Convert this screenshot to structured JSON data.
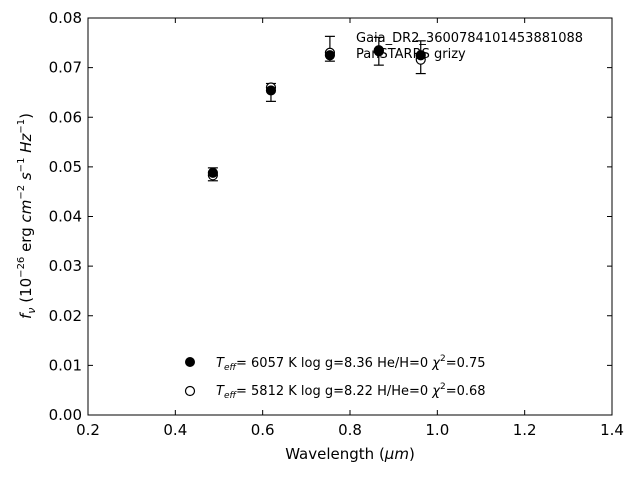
{
  "chart_data": {
    "type": "scatter",
    "xlabel_prefix": "Wavelength (",
    "xlabel_unit": "μm",
    "xlabel_suffix": ")",
    "ylabel_f": "f",
    "ylabel_nu": "ν",
    "ylabel_open": " (10",
    "ylabel_exp": "−26",
    "ylabel_erg": " erg ",
    "ylabel_cm": "cm",
    "ylabel_cm_exp": "−2",
    "ylabel_s": " s",
    "ylabel_s_exp": "−1",
    "ylabel_hz": " Hz",
    "ylabel_hz_exp": "−1",
    "ylabel_close": ")",
    "xlim": [
      0.2,
      1.4
    ],
    "ylim": [
      0.0,
      0.08
    ],
    "xticks": [
      0.2,
      0.4,
      0.6,
      0.8,
      1.0,
      1.2,
      1.4
    ],
    "xtick_labels": [
      "0.2",
      "0.4",
      "0.6",
      "0.8",
      "1.0",
      "1.2",
      "1.4"
    ],
    "yticks": [
      0.0,
      0.01,
      0.02,
      0.03,
      0.04,
      0.05,
      0.06,
      0.07,
      0.08
    ],
    "ytick_labels": [
      "0.00",
      "0.01",
      "0.02",
      "0.03",
      "0.04",
      "0.05",
      "0.06",
      "0.07",
      "0.08"
    ],
    "grid": false,
    "annotation_lines": [
      "Gaia_DR2_3600784101453881088",
      "PanSTARRS grizy"
    ],
    "observed": {
      "x": [
        0.486,
        0.619,
        0.754,
        0.866,
        0.962
      ],
      "y": [
        0.0485,
        0.065,
        0.0738,
        0.0733,
        0.0721
      ],
      "err": [
        0.0013,
        0.0018,
        0.0025,
        0.0028,
        0.0033
      ]
    },
    "series": [
      {
        "name_prefix": "T",
        "name_sub": "eff",
        "name_mid": "=  6057 K  log g=8.36  He/H=0  ",
        "name_chi": "χ",
        "name_chi_exp": "2",
        "name_end": "=0.75",
        "marker": "filled-circle",
        "x": [
          0.486,
          0.619,
          0.754,
          0.866,
          0.962
        ],
        "y": [
          0.0488,
          0.0654,
          0.0725,
          0.0733,
          0.0725
        ]
      },
      {
        "name_prefix": "T",
        "name_sub": "eff",
        "name_mid": "=  5812 K  log g=8.22  H/He=0  ",
        "name_chi": "χ",
        "name_chi_exp": "2",
        "name_end": "=0.68",
        "marker": "open-circle",
        "x": [
          0.486,
          0.619,
          0.754,
          0.866,
          0.962
        ],
        "y": [
          0.0483,
          0.066,
          0.073,
          0.0735,
          0.0716
        ]
      }
    ]
  }
}
